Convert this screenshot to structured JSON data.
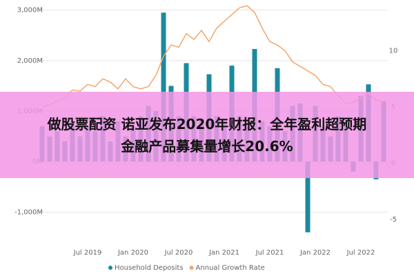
{
  "chart_data": {
    "type": "bar-line",
    "categories": [
      null,
      null,
      null,
      null,
      null,
      null,
      "Jul 2019",
      null,
      null,
      null,
      null,
      null,
      "Jan 2020",
      null,
      null,
      null,
      null,
      null,
      "Jul 2020",
      null,
      null,
      null,
      null,
      null,
      "Jan 2021",
      null,
      null,
      null,
      null,
      null,
      "Jul 2021",
      null,
      null,
      null,
      null,
      null,
      "Jan 2022",
      null,
      null,
      null,
      null,
      null,
      "Jul 2022",
      null,
      null,
      null
    ],
    "series": [
      {
        "name": "Household Deposits",
        "color": "#1b8a9e",
        "type": "bar",
        "values": [
          700,
          500,
          600,
          400,
          800,
          500,
          700,
          600,
          900,
          400,
          800,
          500,
          700,
          900,
          1100,
          1000,
          2950,
          1500,
          900,
          1950,
          900,
          800,
          1730,
          900,
          800,
          1900,
          900,
          700,
          2230,
          800,
          700,
          1850,
          600,
          1100,
          1150,
          -1400,
          1100,
          700,
          500,
          900,
          700,
          -200,
          1300,
          1530,
          -350,
          1200
        ]
      },
      {
        "name": "Annual Growth Rate",
        "color": "#f5a56b",
        "type": "line",
        "axis": "y2",
        "values": [
          5.0,
          5.2,
          5.5,
          5.8,
          6.5,
          6.4,
          7.0,
          6.8,
          7.5,
          7.2,
          6.6,
          7.5,
          6.8,
          6.6,
          6.8,
          7.8,
          9.5,
          10.5,
          10.3,
          11.5,
          11.0,
          11.8,
          10.8,
          12.0,
          12.6,
          13.2,
          13.8,
          14.0,
          13.4,
          12.0,
          10.8,
          10.5,
          10.0,
          9.0,
          8.6,
          8.2,
          7.8,
          7.0,
          6.8,
          6.0,
          5.3,
          5.4,
          5.8,
          6.2,
          5.6,
          5.4
        ]
      }
    ],
    "ylim": [
      -1500,
      3200
    ],
    "yticks": [
      {
        "value": -1000,
        "label": "-1,000M"
      },
      {
        "value": 0,
        "label": "0M"
      },
      {
        "value": 1000,
        "label": "1,000M"
      },
      {
        "value": 2000,
        "label": "2,000M"
      },
      {
        "value": 3000,
        "label": "3,000M"
      }
    ],
    "y2lim": [
      -6.6,
      14.5
    ],
    "y2ticks": [
      -5,
      0,
      5,
      10
    ],
    "grid": true
  },
  "banner": {
    "lines": [
      "做股票配资 诺亚发布2020年财报：全年盈利超预期",
      "金融产品募集量增长20.6%"
    ]
  }
}
